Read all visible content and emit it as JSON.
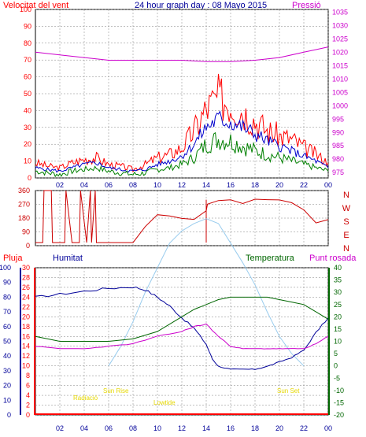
{
  "header": {
    "left_label": "Velocitat del vent",
    "center_label": "24 hour graph day : 08 Mayo 2015",
    "right_label": "Pressió"
  },
  "bottom_header": {
    "pluja": "Pluja",
    "humitat": "Humitat",
    "temperatura": "Temperatura",
    "punt_rosada": "Punt rosada"
  },
  "colors": {
    "frame": "#000000",
    "wind_gust": "#ff0000",
    "wind_avg": "#0000cc",
    "wind_low": "#008000",
    "pressure": "#cc00cc",
    "direction": "#cc0000",
    "humidity": "#000099",
    "temperature": "#006600",
    "dewpoint": "#cc00cc",
    "solar": "#99ccee",
    "rain": "#ff0000",
    "annot": "#e6d800",
    "grid": "#808080"
  },
  "chart_data": [
    {
      "type": "line",
      "name": "wind_pressure",
      "x_ticks": [
        "02",
        "04",
        "06",
        "08",
        "10",
        "12",
        "14",
        "16",
        "18",
        "20",
        "22",
        "00"
      ],
      "y_left_ticks": [
        "0",
        "10",
        "20",
        "30",
        "40",
        "50",
        "60",
        "70",
        "80",
        "90",
        "100"
      ],
      "y_left_lim": [
        0,
        100
      ],
      "y_right_ticks": [
        "975",
        "980",
        "985",
        "990",
        "995",
        "1000",
        "1005",
        "1010",
        "1015",
        "1020",
        "1025",
        "1030",
        "1035"
      ],
      "y_right_lim": [
        973,
        1036
      ],
      "series": [
        {
          "key": "gust",
          "color_key": "wind_gust",
          "x": [
            0,
            1,
            2,
            3,
            4,
            5,
            6,
            7,
            8,
            9,
            10,
            11,
            12,
            13,
            14,
            15,
            16,
            17,
            18,
            19,
            20,
            21,
            22,
            23,
            24
          ],
          "y": [
            9,
            7,
            6,
            9,
            11,
            12,
            8,
            7,
            5,
            8,
            12,
            14,
            18,
            28,
            41,
            48,
            44,
            40,
            34,
            28,
            25,
            23,
            18,
            14,
            9
          ]
        },
        {
          "key": "avg",
          "color_key": "wind_avg",
          "x": [
            0,
            1,
            2,
            3,
            4,
            5,
            6,
            7,
            8,
            9,
            10,
            11,
            12,
            13,
            14,
            15,
            16,
            17,
            18,
            19,
            20,
            21,
            22,
            23,
            24
          ],
          "y": [
            6,
            5,
            4,
            6,
            8,
            9,
            6,
            5,
            4,
            5,
            8,
            10,
            13,
            20,
            30,
            35,
            33,
            30,
            26,
            22,
            19,
            16,
            13,
            10,
            6
          ]
        },
        {
          "key": "low",
          "color_key": "wind_low",
          "x": [
            0,
            1,
            2,
            3,
            4,
            5,
            6,
            7,
            8,
            9,
            10,
            11,
            12,
            13,
            14,
            15,
            16,
            17,
            18,
            19,
            20,
            21,
            22,
            23,
            24
          ],
          "y": [
            4,
            3,
            2,
            4,
            5,
            6,
            4,
            3,
            2,
            3,
            5,
            6,
            8,
            12,
            20,
            23,
            22,
            19,
            16,
            14,
            12,
            10,
            8,
            6,
            4
          ]
        },
        {
          "key": "pressure",
          "color_key": "pressure",
          "x": [
            0,
            2,
            4,
            6,
            8,
            10,
            12,
            14,
            16,
            18,
            20,
            22,
            23,
            24
          ],
          "y": [
            1020,
            1019,
            1018,
            1017,
            1017,
            1017,
            1017,
            1016.5,
            1016.5,
            1017,
            1018,
            1020,
            1021,
            1022
          ]
        }
      ]
    },
    {
      "type": "line",
      "name": "wind_direction",
      "y_ticks": [
        "0",
        "90",
        "180",
        "270",
        "360"
      ],
      "y_lim": [
        0,
        360
      ],
      "right_letters": [
        "N",
        "W",
        "S",
        "E",
        "N"
      ],
      "series": [
        {
          "key": "dir",
          "color_key": "direction",
          "x": [
            0,
            0.6,
            0.7,
            1,
            1.3,
            1.4,
            2.4,
            2.5,
            3,
            3.6,
            3.7,
            4.2,
            4.5,
            4.6,
            4.9,
            5,
            6.8,
            7,
            7.3,
            7.5,
            8,
            9,
            10,
            11,
            12,
            13,
            14,
            14.1,
            15,
            16,
            17,
            18,
            19,
            20,
            21,
            22,
            23,
            24
          ],
          "y": [
            20,
            20,
            360,
            360,
            360,
            20,
            20,
            360,
            20,
            20,
            360,
            20,
            360,
            20,
            360,
            20,
            20,
            20,
            20,
            20,
            20,
            120,
            190,
            200,
            190,
            180,
            220,
            280,
            300,
            290,
            280,
            300,
            290,
            285,
            280,
            240,
            150,
            170
          ]
        }
      ]
    },
    {
      "type": "line",
      "name": "humidity_temperature",
      "y_hum_ticks": [
        "0",
        "10",
        "20",
        "30",
        "40",
        "50",
        "60",
        "70",
        "80",
        "90",
        "100"
      ],
      "y_hum_lim": [
        0,
        100
      ],
      "y_rain_ticks": [
        "0",
        "2",
        "4",
        "6",
        "8",
        "10",
        "12",
        "14",
        "16",
        "18",
        "20",
        "22",
        "24",
        "26",
        "28",
        "30"
      ],
      "y_rain_lim": [
        0,
        30
      ],
      "y_temp_ticks": [
        "-20",
        "-15",
        "-10",
        "-5",
        "0",
        "5",
        "10",
        "15",
        "20",
        "25",
        "30",
        "35",
        "40"
      ],
      "y_temp_lim": [
        -20,
        40
      ],
      "series": [
        {
          "key": "humidity",
          "color_key": "humidity",
          "x": [
            0,
            2,
            4,
            6,
            8,
            9,
            10,
            11,
            12,
            13,
            14,
            14.5,
            15,
            16,
            17,
            18,
            19,
            20,
            21,
            22,
            23,
            24
          ],
          "y": [
            80,
            82,
            84,
            86,
            87,
            85,
            80,
            74,
            66,
            59,
            48,
            38,
            33,
            31,
            31,
            31,
            33,
            36,
            39,
            44,
            56,
            66
          ]
        },
        {
          "key": "temperature",
          "color_key": "temperature",
          "x": [
            0,
            2,
            4,
            6,
            8,
            10,
            12,
            13,
            14,
            15,
            16,
            17,
            18,
            19,
            20,
            21,
            22,
            23,
            24
          ],
          "y": [
            12,
            10,
            10,
            10,
            11,
            14,
            20,
            23,
            25,
            27,
            28,
            28,
            28,
            28,
            27,
            26,
            25,
            22,
            19
          ]
        },
        {
          "key": "dewpoint",
          "color_key": "dewpoint",
          "x": [
            0,
            2,
            4,
            6,
            8,
            10,
            12,
            13,
            14,
            15,
            16,
            17,
            18,
            19,
            20,
            21,
            22,
            23,
            24
          ],
          "y": [
            8,
            7,
            7,
            8,
            9,
            12,
            14,
            16,
            17,
            12,
            8,
            7,
            7,
            7,
            7,
            7,
            7,
            9,
            12
          ]
        },
        {
          "key": "solar",
          "color_key": "solar",
          "x": [
            6,
            7,
            8,
            9,
            10,
            11,
            12,
            13,
            14,
            15,
            16,
            17,
            18,
            19,
            20,
            21,
            22
          ],
          "y": [
            0,
            8,
            18,
            30,
            40,
            50,
            55,
            58,
            60,
            58,
            50,
            42,
            33,
            22,
            12,
            5,
            0
          ]
        }
      ],
      "annotations": {
        "radiacio": "Radiació",
        "sun_rise": "Sun Rise",
        "lowtide": "Lowtide",
        "sun_set": "Sun Set"
      }
    }
  ]
}
